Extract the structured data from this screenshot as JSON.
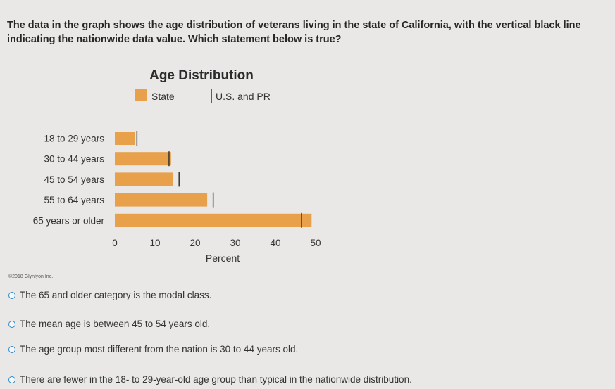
{
  "question": {
    "line1": "The data in the graph shows the age distribution of veterans living in the state of California, with the vertical black line",
    "line2": "indicating the nationwide data value. Which statement below is true?"
  },
  "chart_data": {
    "type": "bar",
    "orientation": "horizontal",
    "title": "Age Distribution",
    "xlabel": "Percent",
    "ylabel": "",
    "xlim": [
      0,
      50
    ],
    "xticks": [
      "0",
      "10",
      "20",
      "30",
      "40",
      "50"
    ],
    "categories": [
      "18 to 29 years",
      "30 to 44 years",
      "45 to 54 years",
      "55 to 64 years",
      "65 years or older"
    ],
    "series": [
      {
        "name": "State",
        "values": [
          5,
          14,
          14.5,
          23,
          49
        ],
        "color": "#e8a04a"
      },
      {
        "name": "U.S. and PR",
        "values": [
          5.5,
          13.5,
          16,
          24.5,
          46.5
        ],
        "color": "#333333"
      }
    ],
    "legend": "top",
    "grid": false
  },
  "copyright": "©2018 Glynlyon Inc.",
  "options": [
    "The 65 and older category is the modal class.",
    "The mean age is between 45 to 54 years old.",
    "The age group most different from the nation is 30 to 44 years old.",
    "There are fewer in the 18- to 29-year-old age group than typical in the nationwide distribution."
  ],
  "colors": {
    "radio": "#2a8bd0",
    "bar": "#e8a04a",
    "marker": "#333333"
  }
}
